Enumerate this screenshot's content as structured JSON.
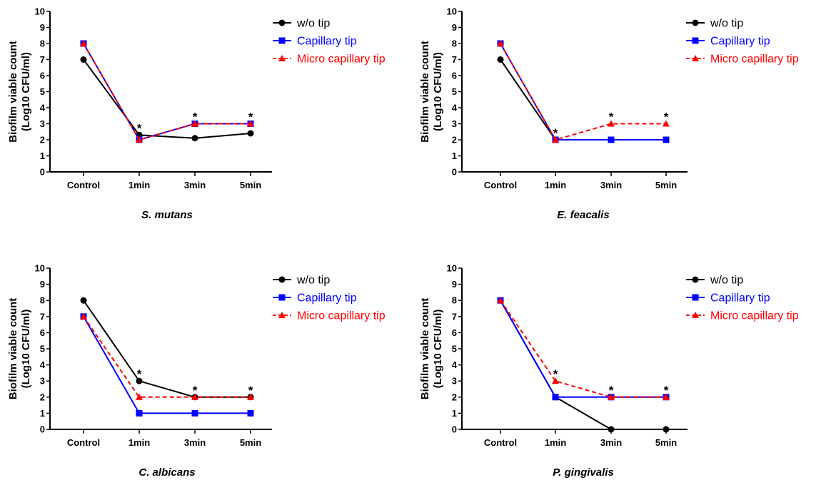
{
  "series_styles": [
    {
      "name": "w/o tip",
      "color": "#000000",
      "marker": "circle",
      "dashed": false
    },
    {
      "name": "Capillary tip",
      "color": "#0000ff",
      "marker": "square",
      "dashed": false
    },
    {
      "name": "Micro capillary tip",
      "color": "#ff0000",
      "marker": "triangle",
      "dashed": true
    }
  ],
  "chart_data": [
    {
      "type": "line",
      "title": "S. mutans",
      "ylabel": [
        "Biofilm viable count",
        "(Log10 CFU/ml)"
      ],
      "categories": [
        "Control",
        "1min",
        "3min",
        "5min"
      ],
      "ylim": [
        0,
        10
      ],
      "yticks": [
        "0",
        "1",
        "2",
        "3",
        "4",
        "5",
        "6",
        "7",
        "8",
        "9",
        "10"
      ],
      "series": [
        {
          "name": "w/o tip",
          "values": [
            7,
            2.3,
            2.1,
            2.4
          ]
        },
        {
          "name": "Capillary tip",
          "values": [
            8,
            2,
            3,
            3
          ]
        },
        {
          "name": "Micro capillary tip",
          "values": [
            8,
            2,
            3,
            3
          ]
        }
      ],
      "annotations": [
        {
          "category": "1min",
          "text": "*"
        },
        {
          "category": "3min",
          "text": "*"
        },
        {
          "category": "5min",
          "text": "*"
        }
      ],
      "legend": "top-right"
    },
    {
      "type": "line",
      "title": "E. feacalis",
      "ylabel": [
        "Biofilm viable count",
        "(Log10 CFU/ml)"
      ],
      "categories": [
        "Control",
        "1min",
        "3min",
        "5min"
      ],
      "ylim": [
        0,
        10
      ],
      "yticks": [
        "0",
        "1",
        "2",
        "3",
        "4",
        "5",
        "6",
        "7",
        "8",
        "9",
        "10"
      ],
      "series": [
        {
          "name": "w/o tip",
          "values": [
            7,
            2,
            2,
            2
          ]
        },
        {
          "name": "Capillary tip",
          "values": [
            8,
            2,
            2,
            2
          ]
        },
        {
          "name": "Micro capillary tip",
          "values": [
            8,
            2,
            3,
            3
          ]
        }
      ],
      "annotations": [
        {
          "category": "1min",
          "text": "*"
        },
        {
          "category": "3min",
          "text": "*"
        },
        {
          "category": "5min",
          "text": "*"
        }
      ],
      "legend": "top-right"
    },
    {
      "type": "line",
      "title": "C. albicans",
      "ylabel": [
        "Biofilm viable count",
        "(Log10 CFU/ml)"
      ],
      "categories": [
        "Control",
        "1min",
        "3min",
        "5min"
      ],
      "ylim": [
        0,
        10
      ],
      "yticks": [
        "0",
        "1",
        "2",
        "3",
        "4",
        "5",
        "6",
        "7",
        "8",
        "9",
        "10"
      ],
      "series": [
        {
          "name": "w/o tip",
          "values": [
            8,
            3,
            2,
            2
          ]
        },
        {
          "name": "Capillary tip",
          "values": [
            7,
            1,
            1,
            1
          ]
        },
        {
          "name": "Micro capillary tip",
          "values": [
            7,
            2,
            2,
            2
          ]
        }
      ],
      "annotations": [
        {
          "category": "1min",
          "text": "*"
        },
        {
          "category": "3min",
          "text": "*"
        },
        {
          "category": "5min",
          "text": "*"
        }
      ],
      "legend": "top-right"
    },
    {
      "type": "line",
      "title": "P. gingivalis",
      "ylabel": [
        "Biofilm viable count",
        "(Log10 CFU/ml)"
      ],
      "categories": [
        "Control",
        "1min",
        "3min",
        "5min"
      ],
      "ylim": [
        0,
        10
      ],
      "yticks": [
        "0",
        "1",
        "2",
        "3",
        "4",
        "5",
        "6",
        "7",
        "8",
        "9",
        "10"
      ],
      "series": [
        {
          "name": "w/o tip",
          "values": [
            8,
            2,
            0,
            0
          ]
        },
        {
          "name": "Capillary tip",
          "values": [
            8,
            2,
            2,
            2
          ]
        },
        {
          "name": "Micro capillary tip",
          "values": [
            8,
            3,
            2,
            2
          ]
        }
      ],
      "annotations": [
        {
          "category": "1min",
          "text": "*"
        },
        {
          "category": "3min",
          "text": "*"
        },
        {
          "category": "5min",
          "text": "*"
        }
      ],
      "legend": "top-right"
    }
  ]
}
